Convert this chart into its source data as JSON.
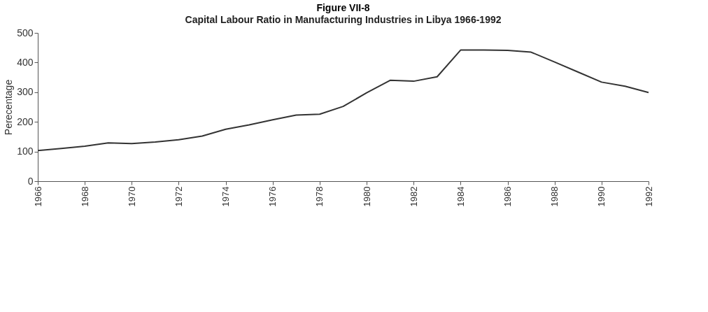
{
  "chart_data": {
    "type": "line",
    "title": "Figure VII-8",
    "subtitle": "Capital Labour Ratio in  Manufacturing Industries in Libya 1966-1992",
    "ylabel": "Perecentage",
    "x": [
      1966,
      1967,
      1968,
      1969,
      1970,
      1971,
      1972,
      1973,
      1974,
      1975,
      1976,
      1977,
      1978,
      1979,
      1980,
      1981,
      1982,
      1983,
      1984,
      1985,
      1986,
      1987,
      1988,
      1989,
      1990,
      1991,
      1992
    ],
    "series": [
      {
        "color": "#333333",
        "values": [
          103,
          110,
          118,
          129,
          127,
          132,
          140,
          152,
          175,
          190,
          207,
          223,
          226,
          252,
          298,
          340,
          337,
          352,
          442,
          442,
          441,
          435,
          402,
          368,
          334,
          320,
          299
        ]
      }
    ],
    "xlim": [
      1966,
      1992
    ],
    "xticks": [
      1966,
      1968,
      1970,
      1972,
      1974,
      1976,
      1978,
      1980,
      1982,
      1984,
      1986,
      1988,
      1990,
      1992
    ],
    "ylim": [
      0,
      500
    ],
    "yticks": [
      0,
      100,
      200,
      300,
      400,
      500
    ],
    "grid": false,
    "legend": false,
    "marker": "none",
    "line_style": "solid"
  }
}
